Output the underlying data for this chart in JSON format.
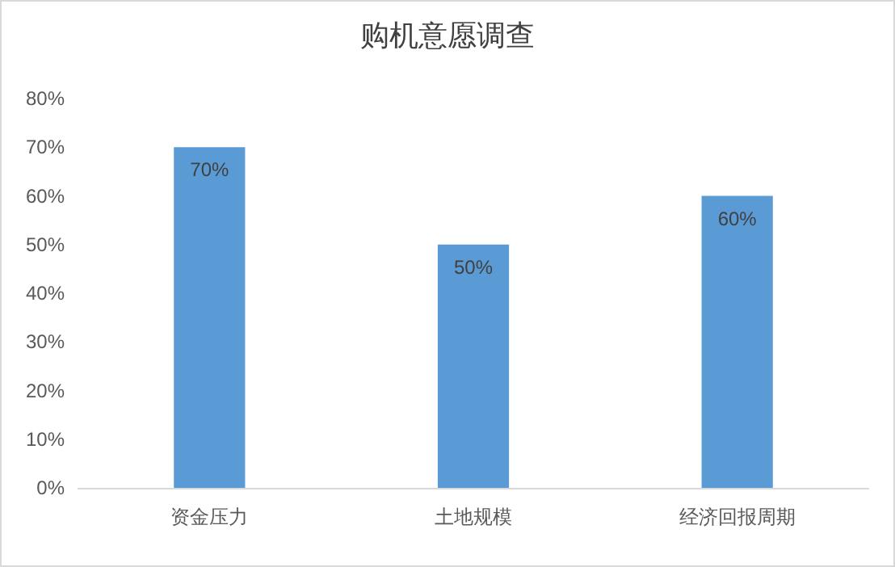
{
  "chart_data": {
    "type": "bar",
    "title": "购机意愿调查",
    "categories": [
      "资金压力",
      "土地规模",
      "经济回报周期"
    ],
    "values": [
      70,
      50,
      60
    ],
    "value_labels": [
      "70%",
      "50%",
      "60%"
    ],
    "color": "#5b9bd5",
    "ylim": [
      0,
      80
    ],
    "yticks": [
      {
        "value": 0,
        "label": "0%"
      },
      {
        "value": 10,
        "label": "10%"
      },
      {
        "value": 20,
        "label": "20%"
      },
      {
        "value": 30,
        "label": "30%"
      },
      {
        "value": 40,
        "label": "40%"
      },
      {
        "value": 50,
        "label": "50%"
      },
      {
        "value": 60,
        "label": "60%"
      },
      {
        "value": 70,
        "label": "70%"
      },
      {
        "value": 80,
        "label": "80%"
      }
    ]
  }
}
